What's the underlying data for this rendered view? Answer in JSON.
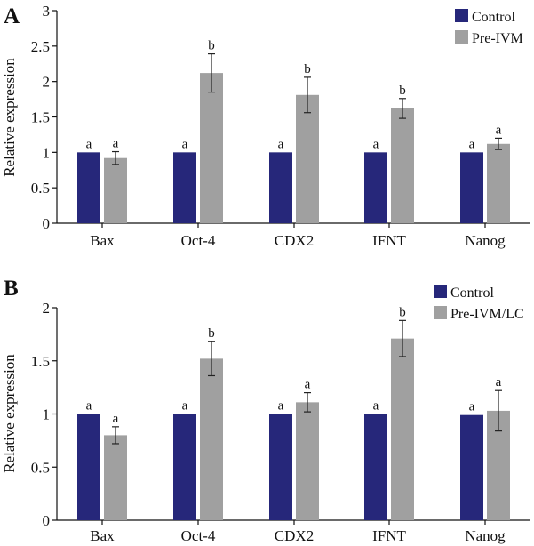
{
  "chart_data": [
    {
      "type": "bar",
      "panel": "A",
      "ylabel": "Relative expression",
      "ylim": [
        0,
        3
      ],
      "yticks": [
        "0",
        "0.5",
        "1",
        "1.5",
        "2",
        "2.5",
        "3"
      ],
      "legend_position": "top-right",
      "categories": [
        "Bax",
        "Oct-4",
        "CDX2",
        "IFNT",
        "Nanog"
      ],
      "series": [
        {
          "name": "Control",
          "color": "#26277a",
          "values": [
            1,
            1,
            1,
            1,
            1
          ],
          "errors": [
            0,
            0,
            0,
            0,
            0
          ],
          "labels": [
            "a",
            "a",
            "a",
            "a",
            "a"
          ]
        },
        {
          "name": "Pre-IVM",
          "color": "#a0a0a0",
          "values": [
            0.92,
            2.12,
            1.81,
            1.62,
            1.12
          ],
          "errors": [
            0.09,
            0.27,
            0.25,
            0.14,
            0.08
          ],
          "labels": [
            "a",
            "b",
            "b",
            "b",
            "a"
          ]
        }
      ]
    },
    {
      "type": "bar",
      "panel": "B",
      "ylabel": "Relative expression",
      "ylim": [
        0,
        2
      ],
      "yticks": [
        "0",
        "0.5",
        "1",
        "1.5",
        "2"
      ],
      "legend_position": "top-right",
      "categories": [
        "Bax",
        "Oct-4",
        "CDX2",
        "IFNT",
        "Nanog"
      ],
      "series": [
        {
          "name": "Control",
          "color": "#26277a",
          "values": [
            1,
            1,
            1,
            1,
            0.99
          ],
          "errors": [
            0,
            0,
            0,
            0,
            0
          ],
          "labels": [
            "a",
            "a",
            "a",
            "a",
            "a"
          ]
        },
        {
          "name": "Pre-IVM/LC",
          "color": "#a0a0a0",
          "values": [
            0.8,
            1.52,
            1.11,
            1.71,
            1.03
          ],
          "errors": [
            0.08,
            0.16,
            0.09,
            0.17,
            0.19
          ],
          "labels": [
            "a",
            "b",
            "a",
            "b",
            "a"
          ]
        }
      ]
    }
  ]
}
